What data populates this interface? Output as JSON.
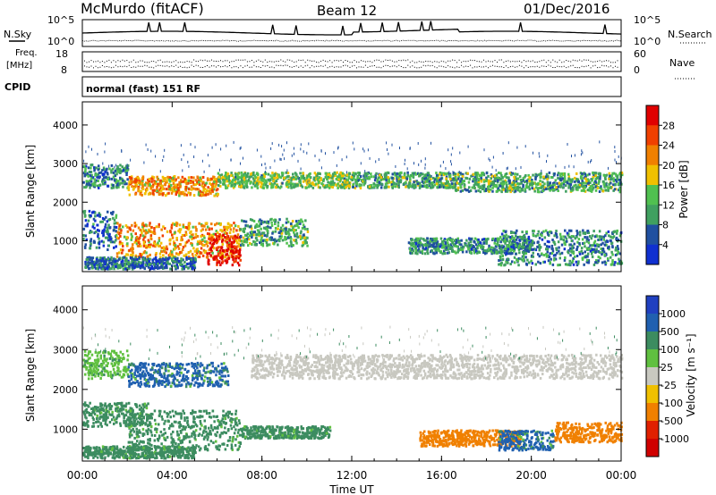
{
  "header": {
    "station": "McMurdo (fitACF)",
    "beam": "Beam 12",
    "date": "01/Dec/2016"
  },
  "noise_panel": {
    "left_label": "N.Sky",
    "right_label": "N.Search",
    "ytick_top": "10^5",
    "ytick_bottom": "10^0"
  },
  "freq_panel": {
    "left_label_line1": "Freq.",
    "left_label_line2": "[MHz]",
    "left_ticks": [
      "18",
      "8"
    ],
    "right_label": "Nave",
    "right_ticks": [
      "60",
      "0"
    ]
  },
  "cpid_panel": {
    "label": "CPID",
    "text": "normal (fast) 151 RF"
  },
  "time_axis": {
    "label": "Time UT",
    "ticks": [
      "00:00",
      "04:00",
      "08:00",
      "12:00",
      "16:00",
      "20:00",
      "00:00"
    ]
  },
  "chart_data": [
    {
      "type": "heatmap",
      "name": "power",
      "xlabel": "Time UT",
      "ylabel": "Slant Range [km]",
      "xlim": [
        "00:00",
        "24:00"
      ],
      "ylim": [
        200,
        4600
      ],
      "yticks": [
        1000,
        2000,
        3000,
        4000
      ],
      "colorbar": {
        "label": "Power [dB]",
        "ticks": [
          28,
          24,
          20,
          16,
          12,
          8,
          4
        ],
        "colors": [
          "#e00000",
          "#f04000",
          "#f08000",
          "#f0c000",
          "#50c050",
          "#40a060",
          "#2050a0",
          "#1030d0"
        ]
      },
      "regions": [
        {
          "t0": 0.0,
          "t1": 2.0,
          "r0": 2400,
          "r1": 3000,
          "level": 10
        },
        {
          "t0": 2.0,
          "t1": 6.0,
          "r0": 2200,
          "r1": 2700,
          "level": 20
        },
        {
          "t0": 6.0,
          "t1": 12.0,
          "r0": 2400,
          "r1": 2800,
          "level": 14
        },
        {
          "t0": 12.0,
          "t1": 16.5,
          "r0": 2400,
          "r1": 2800,
          "level": 12
        },
        {
          "t0": 16.5,
          "t1": 24.0,
          "r0": 2300,
          "r1": 2800,
          "level": 12
        },
        {
          "t0": 0.0,
          "t1": 1.5,
          "r0": 800,
          "r1": 1800,
          "level": 8
        },
        {
          "t0": 1.5,
          "t1": 7.0,
          "r0": 600,
          "r1": 1500,
          "level": 20
        },
        {
          "t0": 5.5,
          "t1": 7.0,
          "r0": 400,
          "r1": 1200,
          "level": 28
        },
        {
          "t0": 7.0,
          "t1": 10.0,
          "r0": 900,
          "r1": 1600,
          "level": 12
        },
        {
          "t0": 14.5,
          "t1": 20.0,
          "r0": 700,
          "r1": 1100,
          "level": 10
        },
        {
          "t0": 18.5,
          "t1": 24.0,
          "r0": 400,
          "r1": 1300,
          "level": 10
        },
        {
          "t0": 0.0,
          "t1": 5.0,
          "r0": 300,
          "r1": 600,
          "level": 8
        }
      ]
    },
    {
      "type": "heatmap",
      "name": "velocity",
      "xlabel": "Time UT",
      "ylabel": "Slant Range [km]",
      "xlim": [
        "00:00",
        "24:00"
      ],
      "ylim": [
        200,
        4600
      ],
      "yticks": [
        1000,
        2000,
        3000,
        4000
      ],
      "colorbar": {
        "label": "Velocity [m s⁻¹]",
        "ticks": [
          1000,
          500,
          100,
          25,
          -25,
          -100,
          -500,
          -1000
        ],
        "colors": [
          "#2040c0",
          "#2060b0",
          "#3c8c60",
          "#60c040",
          "#c8c8c0",
          "#f0c000",
          "#f08000",
          "#e02000",
          "#d00000"
        ]
      },
      "regions": [
        {
          "t0": 0.0,
          "t1": 2.0,
          "r0": 2300,
          "r1": 3000,
          "level": 25
        },
        {
          "t0": 2.0,
          "t1": 6.5,
          "r0": 2100,
          "r1": 2700,
          "level": 500
        },
        {
          "t0": 7.5,
          "t1": 24.0,
          "r0": 2300,
          "r1": 2900,
          "level": 0
        },
        {
          "t0": 0.0,
          "t1": 3.0,
          "r0": 1100,
          "r1": 1700,
          "level": 100
        },
        {
          "t0": 2.0,
          "t1": 7.0,
          "r0": 500,
          "r1": 1500,
          "level": 300
        },
        {
          "t0": 7.0,
          "t1": 11.0,
          "r0": 800,
          "r1": 1100,
          "level": 100
        },
        {
          "t0": 15.0,
          "t1": 19.5,
          "r0": 600,
          "r1": 1000,
          "level": -500
        },
        {
          "t0": 18.5,
          "t1": 21.0,
          "r0": 500,
          "r1": 1000,
          "level": 500
        },
        {
          "t0": 21.0,
          "t1": 24.0,
          "r0": 700,
          "r1": 1200,
          "level": -500
        },
        {
          "t0": 0.0,
          "t1": 5.0,
          "r0": 300,
          "r1": 600,
          "level": 100
        }
      ]
    }
  ]
}
